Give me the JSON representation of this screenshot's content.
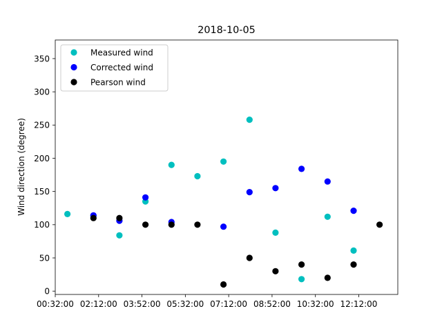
{
  "chart_data": {
    "type": "scatter",
    "title": "2018-10-05",
    "xlabel": "",
    "ylabel": "Wind direction (degree)",
    "x_ticks": [
      "00:32:00",
      "02:12:00",
      "03:52:00",
      "05:32:00",
      "07:12:00",
      "08:52:00",
      "10:32:00",
      "12:12:00"
    ],
    "xlim": [
      "00:32:00",
      "13:42:00"
    ],
    "ylim": [
      -5,
      378
    ],
    "y_ticks": [
      0,
      50,
      100,
      150,
      200,
      250,
      300,
      350
    ],
    "grid": false,
    "legend_position": "top-left",
    "series": [
      {
        "name": "Measured wind",
        "color": "#00bfbf",
        "points": [
          {
            "x": "01:00:00",
            "y": 116
          },
          {
            "x": "02:00:00",
            "y": 113
          },
          {
            "x": "03:00:00",
            "y": 84
          },
          {
            "x": "04:00:00",
            "y": 135
          },
          {
            "x": "05:00:00",
            "y": 190
          },
          {
            "x": "06:00:00",
            "y": 173
          },
          {
            "x": "07:00:00",
            "y": 195
          },
          {
            "x": "08:00:00",
            "y": 258
          },
          {
            "x": "09:00:00",
            "y": 88
          },
          {
            "x": "10:00:00",
            "y": 18
          },
          {
            "x": "11:00:00",
            "y": 112
          },
          {
            "x": "12:00:00",
            "y": 61
          }
        ]
      },
      {
        "name": "Corrected wind",
        "color": "#0000ff",
        "points": [
          {
            "x": "02:00:00",
            "y": 114
          },
          {
            "x": "03:00:00",
            "y": 106
          },
          {
            "x": "04:00:00",
            "y": 141
          },
          {
            "x": "05:00:00",
            "y": 104
          },
          {
            "x": "07:00:00",
            "y": 97
          },
          {
            "x": "08:00:00",
            "y": 149
          },
          {
            "x": "09:00:00",
            "y": 155
          },
          {
            "x": "10:00:00",
            "y": 184
          },
          {
            "x": "11:00:00",
            "y": 165
          },
          {
            "x": "12:00:00",
            "y": 121
          }
        ]
      },
      {
        "name": "Pearson wind",
        "color": "#000000",
        "points": [
          {
            "x": "02:00:00",
            "y": 110
          },
          {
            "x": "03:00:00",
            "y": 110
          },
          {
            "x": "04:00:00",
            "y": 100
          },
          {
            "x": "05:00:00",
            "y": 100
          },
          {
            "x": "06:00:00",
            "y": 100
          },
          {
            "x": "07:00:00",
            "y": 10
          },
          {
            "x": "08:00:00",
            "y": 50
          },
          {
            "x": "09:00:00",
            "y": 30
          },
          {
            "x": "10:00:00",
            "y": 40
          },
          {
            "x": "11:00:00",
            "y": 20
          },
          {
            "x": "12:00:00",
            "y": 40
          },
          {
            "x": "13:00:00",
            "y": 100
          }
        ]
      }
    ]
  }
}
